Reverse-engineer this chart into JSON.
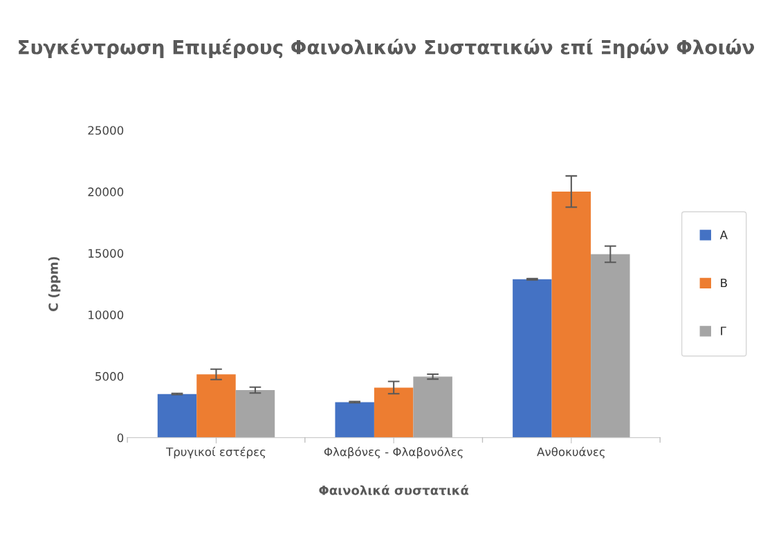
{
  "chart_data": {
    "type": "bar",
    "title": "Συγκέντρωση Επιμέρους Φαινολικών Συστατικών επί Ξηρών Φλοιών",
    "xlabel": "Φαινολικά συστατικά",
    "ylabel": "C (ppm)",
    "categories": [
      "Τρυγικοί εστέρες",
      "Φλαβόνες - Φλαβονόλες",
      "Ανθοκυάνες"
    ],
    "series": [
      {
        "name": "Α",
        "color": "#4472c4",
        "values": [
          3550,
          2890,
          12880
        ],
        "errors": [
          50,
          50,
          50
        ]
      },
      {
        "name": "Β",
        "color": "#ed7d31",
        "values": [
          5150,
          4070,
          20010
        ],
        "errors": [
          420,
          500,
          1270
        ]
      },
      {
        "name": "Γ",
        "color": "#a5a5a5",
        "values": [
          3870,
          4960,
          14920
        ],
        "errors": [
          240,
          200,
          660
        ]
      }
    ],
    "ylim": [
      0,
      25000
    ],
    "yticks": [
      0,
      5000,
      10000,
      15000,
      20000,
      25000
    ],
    "grid": false,
    "legend": "right"
  }
}
